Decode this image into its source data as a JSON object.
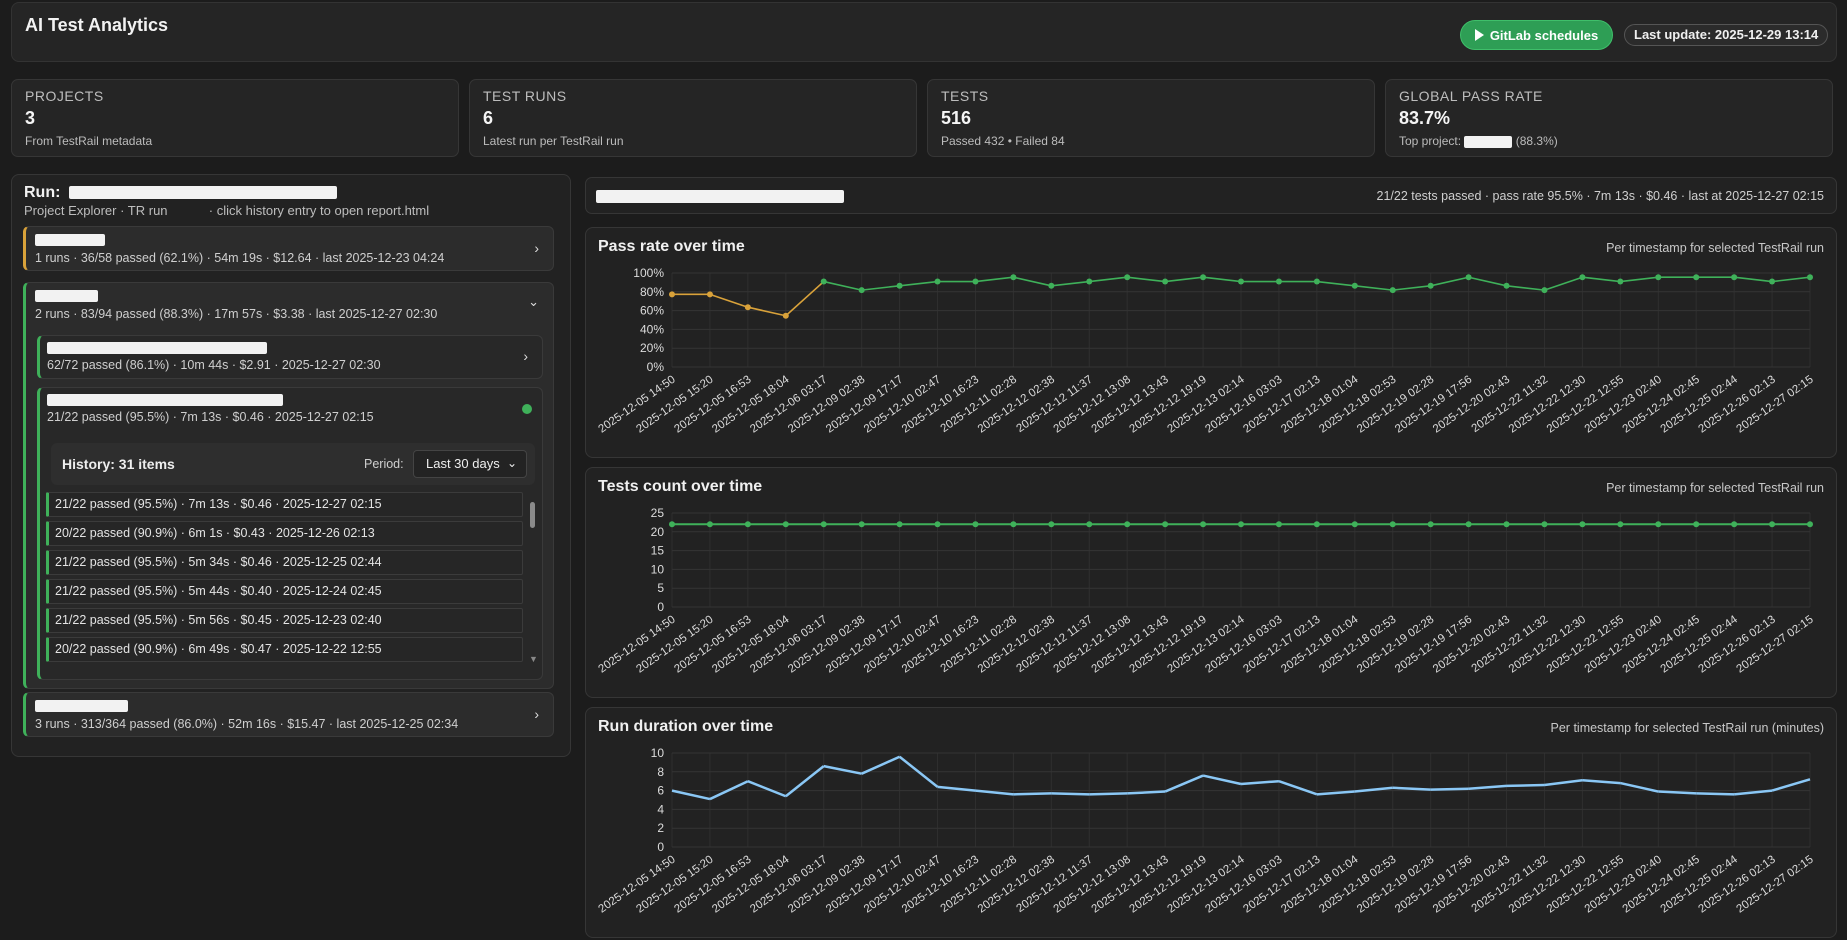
{
  "header": {
    "title": "AI Test Analytics",
    "gitlab_label": "GitLab schedules",
    "last_update": "Last update: 2025-12-29 13:14"
  },
  "stats": [
    {
      "label": "PROJECTS",
      "value": "3",
      "sub": "From TestRail metadata"
    },
    {
      "label": "TEST RUNS",
      "value": "6",
      "sub": "Latest run per TestRail run"
    },
    {
      "label": "TESTS",
      "value": "516",
      "sub": "Passed 432 • Failed 84"
    },
    {
      "label": "GLOBAL PASS RATE",
      "value": "83.7%",
      "sub_prefix": "Top project:",
      "sub_suffix": "(88.3%)"
    }
  ],
  "run_panel": {
    "title_prefix": "Run:",
    "subtitle_a": "Project Explorer · TR run",
    "subtitle_b": "· click history entry to open report.html",
    "projects": [
      {
        "meta": "1 runs · 36/58 passed (62.1%) · 54m 19s · $12.64 · last 2025-12-23 04:24",
        "accent": "#d9a23a"
      },
      {
        "meta": "2 runs · 83/94 passed (88.3%) · 17m 57s · $3.38 · last 2025-12-27 02:30",
        "accent": "#3fb15a"
      },
      {
        "meta": "3 runs · 313/364 passed (86.0%) · 52m 16s · $15.47 · last 2025-12-25 02:34",
        "accent": "#3fb15a"
      }
    ],
    "runs": [
      {
        "meta": "62/72 passed (86.1%) · 10m 44s · $2.91 · 2025-12-27 02:30"
      },
      {
        "meta": "21/22 passed (95.5%) · 7m 13s · $0.46 · 2025-12-27 02:15"
      }
    ],
    "history": {
      "title": "History: 31 items",
      "period_label": "Period:",
      "period_value": "Last 30 days",
      "items": [
        "21/22 passed (95.5%) · 7m 13s · $0.46 · 2025-12-27 02:15",
        "20/22 passed (90.9%) · 6m 1s · $0.43 · 2025-12-26 02:13",
        "21/22 passed (95.5%) · 5m 34s · $0.46 · 2025-12-25 02:44",
        "21/22 passed (95.5%) · 5m 44s · $0.40 · 2025-12-24 02:45",
        "21/22 passed (95.5%) · 5m 56s · $0.45 · 2025-12-23 02:40",
        "20/22 passed (90.9%) · 6m 49s · $0.47 · 2025-12-22 12:55"
      ]
    }
  },
  "selected_run_summary": "21/22 tests passed · pass rate 95.5% · 7m 13s · $0.46 · last at 2025-12-27 02:15",
  "chart_data": [
    {
      "type": "line",
      "title": "Pass rate over time",
      "note": "Per timestamp for selected TestRail run",
      "x": [
        "2025-12-05 14:50",
        "2025-12-05 15:20",
        "2025-12-05 16:53",
        "2025-12-05 18:04",
        "2025-12-06 03:17",
        "2025-12-09 02:38",
        "2025-12-09 17:17",
        "2025-12-10 02:47",
        "2025-12-10 16:23",
        "2025-12-11 02:28",
        "2025-12-12 02:38",
        "2025-12-12 11:37",
        "2025-12-12 13:08",
        "2025-12-12 13:43",
        "2025-12-12 19:19",
        "2025-12-13 02:14",
        "2025-12-16 03:03",
        "2025-12-17 02:13",
        "2025-12-18 01:04",
        "2025-12-18 02:53",
        "2025-12-19 02:28",
        "2025-12-19 17:56",
        "2025-12-20 02:43",
        "2025-12-22 11:32",
        "2025-12-22 12:30",
        "2025-12-22 12:55",
        "2025-12-23 02:40",
        "2025-12-24 02:45",
        "2025-12-25 02:44",
        "2025-12-26 02:13",
        "2025-12-27 02:15"
      ],
      "values": [
        77.3,
        77.3,
        63.6,
        54.5,
        90.9,
        81.8,
        86.4,
        90.9,
        90.9,
        95.5,
        86.4,
        90.9,
        95.5,
        90.9,
        95.5,
        90.9,
        90.9,
        90.9,
        86.4,
        81.8,
        86.4,
        95.5,
        86.4,
        81.8,
        95.5,
        90.9,
        95.5,
        95.5,
        95.5,
        90.9,
        95.5
      ],
      "yticks": [
        "0%",
        "20%",
        "40%",
        "60%",
        "80%",
        "100%"
      ],
      "ylim": [
        0,
        100
      ]
    },
    {
      "type": "line",
      "title": "Tests count over time",
      "note": "Per timestamp for selected TestRail run",
      "x": [
        "2025-12-05 14:50",
        "2025-12-05 15:20",
        "2025-12-05 16:53",
        "2025-12-05 18:04",
        "2025-12-06 03:17",
        "2025-12-09 02:38",
        "2025-12-09 17:17",
        "2025-12-10 02:47",
        "2025-12-10 16:23",
        "2025-12-11 02:28",
        "2025-12-12 02:38",
        "2025-12-12 11:37",
        "2025-12-12 13:08",
        "2025-12-12 13:43",
        "2025-12-12 19:19",
        "2025-12-13 02:14",
        "2025-12-16 03:03",
        "2025-12-17 02:13",
        "2025-12-18 01:04",
        "2025-12-18 02:53",
        "2025-12-19 02:28",
        "2025-12-19 17:56",
        "2025-12-20 02:43",
        "2025-12-22 11:32",
        "2025-12-22 12:30",
        "2025-12-22 12:55",
        "2025-12-23 02:40",
        "2025-12-24 02:45",
        "2025-12-25 02:44",
        "2025-12-26 02:13",
        "2025-12-27 02:15"
      ],
      "values": [
        22,
        22,
        22,
        22,
        22,
        22,
        22,
        22,
        22,
        22,
        22,
        22,
        22,
        22,
        22,
        22,
        22,
        22,
        22,
        22,
        22,
        22,
        22,
        22,
        22,
        22,
        22,
        22,
        22,
        22,
        22
      ],
      "yticks": [
        "0",
        "5",
        "10",
        "15",
        "20",
        "25"
      ],
      "ylim": [
        0,
        25
      ]
    },
    {
      "type": "line",
      "title": "Run duration over time",
      "note": "Per timestamp for selected TestRail run (minutes)",
      "x": [
        "2025-12-05 14:50",
        "2025-12-05 15:20",
        "2025-12-05 16:53",
        "2025-12-05 18:04",
        "2025-12-06 03:17",
        "2025-12-09 02:38",
        "2025-12-09 17:17",
        "2025-12-10 02:47",
        "2025-12-10 16:23",
        "2025-12-11 02:28",
        "2025-12-12 02:38",
        "2025-12-12 11:37",
        "2025-12-12 13:08",
        "2025-12-12 13:43",
        "2025-12-12 19:19",
        "2025-12-13 02:14",
        "2025-12-16 03:03",
        "2025-12-17 02:13",
        "2025-12-18 01:04",
        "2025-12-18 02:53",
        "2025-12-19 02:28",
        "2025-12-19 17:56",
        "2025-12-20 02:43",
        "2025-12-22 11:32",
        "2025-12-22 12:30",
        "2025-12-22 12:55",
        "2025-12-23 02:40",
        "2025-12-24 02:45",
        "2025-12-25 02:44",
        "2025-12-26 02:13",
        "2025-12-27 02:15"
      ],
      "values": [
        6.0,
        5.1,
        7.0,
        5.4,
        8.6,
        7.8,
        9.6,
        6.4,
        6.0,
        5.6,
        5.7,
        5.6,
        5.7,
        5.9,
        7.6,
        6.7,
        7.0,
        5.6,
        5.9,
        6.3,
        6.1,
        6.2,
        6.5,
        6.6,
        7.1,
        6.8,
        5.9,
        5.7,
        5.6,
        6.0,
        7.2
      ],
      "yticks": [
        "0",
        "2",
        "4",
        "6",
        "8",
        "10"
      ],
      "ylim": [
        0,
        10
      ]
    }
  ],
  "colors": {
    "accent_green": "#3fb15a",
    "accent_yellow": "#d9a23a",
    "duration_blue": "#8ac7f5"
  }
}
